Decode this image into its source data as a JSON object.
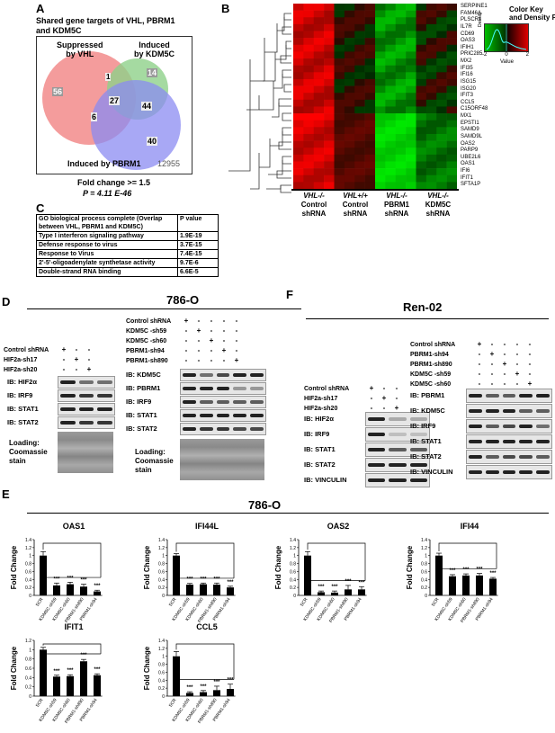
{
  "panelA": {
    "letter": "A",
    "title_lines": [
      "Shared gene targets of VHL, PBRM1",
      "and KDM5C"
    ],
    "set_suppressed": [
      "Suppressed",
      "by VHL"
    ],
    "set_kdm5c": [
      "Induced",
      "by KDM5C"
    ],
    "set_pbrm1": "Induced by PBRM1",
    "counts": {
      "vhl_only": "56",
      "vhl_kdm5c": "1",
      "kdm5c_only": "14",
      "vhl_pbrm1": "6",
      "all_three": "27",
      "kdm5c_pbrm1": "44",
      "pbrm1_only": "40",
      "background": "12955"
    },
    "fold": "Fold change >= 1.5",
    "pval": "P = 4.11 E-46",
    "colors": {
      "vhl": "#f28b8b",
      "kdm5c": "#8fd18a",
      "pbrm1": "#8b8bf2"
    }
  },
  "panelB": {
    "letter": "B",
    "genes": [
      "SERPINE1",
      "FAM46A",
      "PLSCR1",
      "IL7R",
      "CD69",
      "OAS3",
      "IFIH1",
      "PRIC285",
      "MX2",
      "IFI35",
      "IFI16",
      "ISG15",
      "ISG20",
      "IFIT3",
      "CCL5",
      "C15ORF48",
      "MX1",
      "EPSTI1",
      "SAMD9",
      "SAMD9L",
      "OAS2",
      "PARP9",
      "UBE2L6",
      "OAS1",
      "IFI6",
      "IFIT1",
      "SFTA1P"
    ],
    "groups": [
      {
        "l1": "VHL-/-",
        "l2": "Control",
        "l3": "shRNA"
      },
      {
        "l1": "VHL+/+",
        "l2": "Control",
        "l3": "shRNA"
      },
      {
        "l1": "VHL-/-",
        "l2": "PBRM1",
        "l3": "shRNA"
      },
      {
        "l1": "VHL-/-",
        "l2": "KDM5C",
        "l3": "shRNA"
      }
    ],
    "key_title": [
      "Color Key",
      "and Density Pl"
    ],
    "key_ticks": [
      "-2",
      "0",
      "2"
    ],
    "key_xlabel": "Value",
    "key_ylabel": "Density"
  },
  "panelC": {
    "letter": "C",
    "header": [
      "GO biological process complete (Overlap between VHL, PBRM1 and KDM5C)",
      "P value"
    ],
    "rows": [
      [
        "Type I interferon signaling pathway",
        "1.9E-19"
      ],
      [
        "Defense response to virus",
        "3.7E-15"
      ],
      [
        "Response to Virus",
        "7.4E-15"
      ],
      [
        "2'-5'-oligoadenylate synthetase activity",
        "9.7E-6"
      ],
      [
        "Double-strand RNA binding",
        "6.6E-5"
      ]
    ]
  },
  "panelD": {
    "letter": "D",
    "cell": "786-O",
    "left_conditions": [
      {
        "label": "Control shRNA",
        "signs": [
          "+",
          "-",
          "-"
        ]
      },
      {
        "label": "HIF2a-sh17",
        "signs": [
          "-",
          "+",
          "-"
        ]
      },
      {
        "label": "HIF2a-sh20",
        "signs": [
          "-",
          "-",
          "+"
        ]
      }
    ],
    "left_blots": [
      "IB: HIF2α",
      "IB: IRF9",
      "IB: STAT1",
      "IB: STAT2"
    ],
    "left_loading": [
      "Loading:",
      "Coomassie",
      "stain"
    ],
    "right_conditions": [
      {
        "label": "Control shRNA",
        "signs": [
          "+",
          "-",
          "-",
          "-",
          "-"
        ]
      },
      {
        "label": "KDM5C -sh59",
        "signs": [
          "-",
          "+",
          "-",
          "-",
          "-"
        ]
      },
      {
        "label": "KDM5C -sh60",
        "signs": [
          "-",
          "-",
          "+",
          "-",
          "-"
        ]
      },
      {
        "label": "PBRM1-sh94",
        "signs": [
          "-",
          "-",
          "-",
          "+",
          "-"
        ]
      },
      {
        "label": "PBRM1-sh890",
        "signs": [
          "-",
          "-",
          "-",
          "-",
          "+"
        ]
      }
    ],
    "right_blots": [
      "IB: KDM5C",
      "IB: PBRM1",
      "IB: IRF9",
      "IB: STAT1",
      "IB: STAT2"
    ],
    "right_loading": [
      "Loading:",
      "Coomassie",
      "stain"
    ]
  },
  "panelF": {
    "letter": "F",
    "cell": "Ren-02",
    "left_conditions": [
      {
        "label": "Control shRNA",
        "signs": [
          "+",
          "-",
          "-"
        ]
      },
      {
        "label": "HIF2a-sh17",
        "signs": [
          "-",
          "+",
          "-"
        ]
      },
      {
        "label": "HIF2a-sh20",
        "signs": [
          "-",
          "-",
          "+"
        ]
      }
    ],
    "left_blots": [
      "IB: HIF2α",
      "IB: IRF9",
      "IB: STAT1",
      "IB: STAT2",
      "IB: VINCULIN"
    ],
    "right_conditions": [
      {
        "label": "Control shRNA",
        "signs": [
          "+",
          "-",
          "-",
          "-",
          "-"
        ]
      },
      {
        "label": "PBRM1-sh94",
        "signs": [
          "-",
          "+",
          "-",
          "-",
          "-"
        ]
      },
      {
        "label": "PBRM1-sh890",
        "signs": [
          "-",
          "-",
          "+",
          "-",
          "-"
        ]
      },
      {
        "label": "KDM5C -sh59",
        "signs": [
          "-",
          "-",
          "-",
          "+",
          "-"
        ]
      },
      {
        "label": "KDM5C -sh60",
        "signs": [
          "-",
          "-",
          "-",
          "-",
          "+"
        ]
      }
    ],
    "right_blots": [
      "IB: PBRM1",
      "IB: KDM5C",
      "IB: IRF9",
      "IB: STAT1",
      "IB: STAT2",
      "IB: VINCULIN"
    ]
  },
  "panelE": {
    "letter": "E",
    "cell": "786-O",
    "ylabel": "Fold Change",
    "sig": "***"
  },
  "chart_data": [
    {
      "type": "bar",
      "title": "OAS1",
      "categories": [
        "SCR",
        "KDM5C-sh59",
        "KDM5C-sh60",
        "PBRM1-sh890",
        "PBRM1-sh94"
      ],
      "values": [
        1.0,
        0.25,
        0.28,
        0.22,
        0.1
      ],
      "errors": [
        0.1,
        0.06,
        0.05,
        0.06,
        0.03
      ],
      "ylim": [
        0,
        1.4
      ],
      "yticks": [
        "0",
        "0.2",
        "0.4",
        "0.6",
        "0.8",
        "1",
        "1.2",
        "1.4"
      ],
      "ylabel": "Fold Change"
    },
    {
      "type": "bar",
      "title": "IFI44L",
      "categories": [
        "SCR",
        "KDM5C-sh59",
        "KDM5C-sh60",
        "PBRM1-sh890",
        "PBRM1-sh94"
      ],
      "values": [
        1.0,
        0.27,
        0.28,
        0.27,
        0.2
      ],
      "errors": [
        0.05,
        0.03,
        0.03,
        0.04,
        0.03
      ],
      "ylim": [
        0,
        1.4
      ],
      "yticks": [
        "0",
        "0.2",
        "0.4",
        "0.6",
        "0.8",
        "1",
        "1.2",
        "1.4"
      ],
      "ylabel": "Fold Change"
    },
    {
      "type": "bar",
      "title": "OAS2",
      "categories": [
        "SCR",
        "KDM5C-sh59",
        "KDM5C-sh60",
        "PBRM1-sh890",
        "PBRM1-sh94"
      ],
      "values": [
        1.0,
        0.08,
        0.07,
        0.15,
        0.15
      ],
      "errors": [
        0.1,
        0.03,
        0.04,
        0.1,
        0.07
      ],
      "ylim": [
        0,
        1.4
      ],
      "yticks": [
        "0",
        "0.2",
        "0.4",
        "0.6",
        "0.8",
        "1",
        "1.2",
        "1.4"
      ],
      "ylabel": "Fold Change"
    },
    {
      "type": "bar",
      "title": "IFI44",
      "categories": [
        "SCR",
        "KDM5C-sh59",
        "KDM5C-sh60",
        "PBRM1-sh890",
        "PBRM1-sh94"
      ],
      "values": [
        1.0,
        0.48,
        0.5,
        0.5,
        0.42
      ],
      "errors": [
        0.06,
        0.04,
        0.04,
        0.05,
        0.03
      ],
      "ylim": [
        0,
        1.4
      ],
      "yticks": [
        "0",
        "0.2",
        "0.4",
        "0.6",
        "0.8",
        "1",
        "1.2",
        "1.4"
      ],
      "ylabel": "Fold Change"
    },
    {
      "type": "bar",
      "title": "IFIT1",
      "categories": [
        "SCR",
        "KDM5C-sh59",
        "KDM5C-sh60",
        "PBRM1-sh890",
        "PBRM1-sh94"
      ],
      "values": [
        1.0,
        0.42,
        0.43,
        0.75,
        0.45
      ],
      "errors": [
        0.05,
        0.03,
        0.03,
        0.04,
        0.03
      ],
      "ylim": [
        0,
        1.2
      ],
      "yticks": [
        "0",
        "0.2",
        "0.4",
        "0.6",
        "0.8",
        "1",
        "1.2"
      ],
      "ylabel": "Fold Change"
    },
    {
      "type": "bar",
      "title": "CCL5",
      "categories": [
        "SCR",
        "KDM5C-sh59",
        "KDM5C-sh60",
        "PBRM1-sh890",
        "PBRM1-sh94"
      ],
      "values": [
        1.0,
        0.08,
        0.1,
        0.15,
        0.18
      ],
      "errors": [
        0.12,
        0.03,
        0.04,
        0.1,
        0.12
      ],
      "ylim": [
        0,
        1.4
      ],
      "yticks": [
        "0",
        "0.2",
        "0.4",
        "0.6",
        "0.8",
        "1",
        "1.2",
        "1.4"
      ],
      "ylabel": "Fold Change"
    }
  ]
}
